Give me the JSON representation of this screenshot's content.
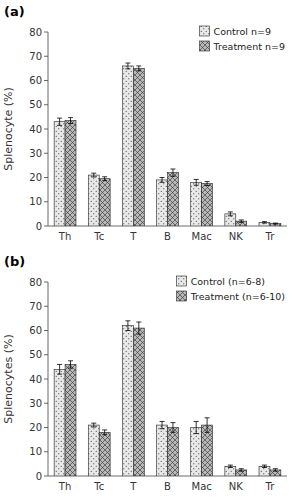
{
  "chart_data": [
    {
      "type": "bar",
      "title": "(a)",
      "ylabel": "Splenocyte (%)",
      "categories": [
        "Th",
        "Tc",
        "T",
        "B",
        "Mac",
        "NK",
        "Tr"
      ],
      "series": [
        {
          "name": "Control n=9",
          "color": "#e8e8e8",
          "values": [
            43,
            21,
            66,
            19,
            18,
            5,
            1.5
          ],
          "errors": [
            1.5,
            0.8,
            1.2,
            1.0,
            1.2,
            0.8,
            0.3
          ]
        },
        {
          "name": "Treatment n=9",
          "color": "#b8b8b8",
          "values": [
            43.5,
            19.5,
            65,
            22,
            17.5,
            2,
            1
          ],
          "errors": [
            1.2,
            0.8,
            1.0,
            1.5,
            0.8,
            0.5,
            0.2
          ]
        }
      ],
      "ylim": [
        0,
        80
      ],
      "yticks": [
        0,
        10,
        20,
        30,
        40,
        50,
        60,
        70,
        80
      ],
      "legend": "upper right"
    },
    {
      "type": "bar",
      "title": "(b)",
      "ylabel": "Splenocytes (%)",
      "categories": [
        "Th",
        "Tc",
        "T",
        "B",
        "Mac",
        "NK",
        "Tr"
      ],
      "series": [
        {
          "name": "Control (n=6-8)",
          "color": "#e8e8e8",
          "values": [
            44,
            21,
            62,
            21,
            20,
            4,
            4
          ],
          "errors": [
            2.0,
            0.8,
            2.0,
            1.5,
            2.5,
            0.5,
            0.5
          ]
        },
        {
          "name": "Treatment (n=6-10)",
          "color": "#b8b8b8",
          "values": [
            46,
            18,
            61,
            20,
            21,
            2.5,
            2.5
          ],
          "errors": [
            1.5,
            1.0,
            2.5,
            2.0,
            3.0,
            0.5,
            0.5
          ]
        }
      ],
      "ylim": [
        0,
        80
      ],
      "yticks": [
        0,
        10,
        20,
        30,
        40,
        50,
        60,
        70,
        80
      ],
      "legend": "upper right"
    }
  ]
}
